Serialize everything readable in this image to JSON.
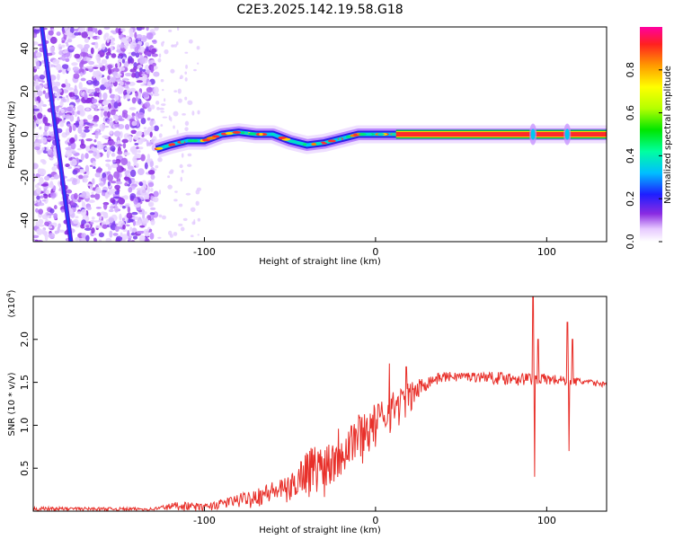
{
  "chart_data": [
    {
      "type": "heatmap",
      "title": "C2E3.2025.142.19.58.G18",
      "xlabel": "Height of straight line (km)",
      "ylabel": "Frequency (Hz)",
      "xlim": [
        -200,
        135
      ],
      "ylim": [
        -50,
        50
      ],
      "xticks": [
        "-100",
        "0",
        "100"
      ],
      "yticks": [
        "40",
        "20",
        "0",
        "-20",
        "-40"
      ],
      "colorbar": {
        "label": "Normalized spectral amplitude",
        "range": [
          0,
          1
        ],
        "ticks": [
          "0.0",
          "0.2",
          "0.4",
          "0.6",
          "0.8"
        ]
      },
      "features": {
        "noise_region_x": [
          -200,
          -128
        ],
        "diagonal_line": {
          "x_start": -195,
          "y_start": 50,
          "x_end": -178,
          "y_end": -50
        },
        "signal_track": [
          {
            "x": -128,
            "y": -7
          },
          {
            "x": -120,
            "y": -5
          },
          {
            "x": -110,
            "y": -3
          },
          {
            "x": -100,
            "y": -3
          },
          {
            "x": -90,
            "y": 0
          },
          {
            "x": -80,
            "y": 1
          },
          {
            "x": -70,
            "y": 0
          },
          {
            "x": -60,
            "y": 0
          },
          {
            "x": -50,
            "y": -3
          },
          {
            "x": -40,
            "y": -5
          },
          {
            "x": -30,
            "y": -4
          },
          {
            "x": -20,
            "y": -2
          },
          {
            "x": -10,
            "y": 0
          },
          {
            "x": 0,
            "y": 0
          },
          {
            "x": 10,
            "y": 0
          },
          {
            "x": 12,
            "y": 0
          },
          {
            "x": 135,
            "y": 0
          }
        ],
        "steady_tone_x": [
          12,
          135
        ]
      }
    },
    {
      "type": "line",
      "xlabel": "Height of straight line (km)",
      "ylabel": "SNR (10 * v/v)",
      "scale_note": "(x10",
      "scale_exp": "4",
      "xlim": [
        -200,
        135
      ],
      "ylim": [
        0,
        2.5
      ],
      "xticks": [
        "-100",
        "0",
        "100"
      ],
      "yticks": [
        "2.0",
        "1.5",
        "1.0",
        "0.5"
      ],
      "color": "#e8302a",
      "envelope": [
        {
          "x": -200,
          "lo": 0.0,
          "hi": 0.05
        },
        {
          "x": -130,
          "lo": 0.0,
          "hi": 0.04
        },
        {
          "x": -115,
          "lo": 0.0,
          "hi": 0.12
        },
        {
          "x": -100,
          "lo": 0.0,
          "hi": 0.08
        },
        {
          "x": -80,
          "lo": 0.03,
          "hi": 0.2
        },
        {
          "x": -60,
          "lo": 0.05,
          "hi": 0.35
        },
        {
          "x": -50,
          "lo": 0.08,
          "hi": 0.4
        },
        {
          "x": -40,
          "lo": 0.15,
          "hi": 0.75
        },
        {
          "x": -30,
          "lo": 0.15,
          "hi": 0.8
        },
        {
          "x": -20,
          "lo": 0.3,
          "hi": 1.05
        },
        {
          "x": -10,
          "lo": 0.5,
          "hi": 1.15
        },
        {
          "x": 0,
          "lo": 0.7,
          "hi": 1.25
        },
        {
          "x": 10,
          "lo": 0.9,
          "hi": 1.4
        },
        {
          "x": 20,
          "lo": 1.1,
          "hi": 1.5
        },
        {
          "x": 30,
          "lo": 1.4,
          "hi": 1.58
        },
        {
          "x": 40,
          "lo": 1.5,
          "hi": 1.62
        },
        {
          "x": 60,
          "lo": 1.5,
          "hi": 1.62
        },
        {
          "x": 80,
          "lo": 1.45,
          "hi": 1.62
        },
        {
          "x": 100,
          "lo": 1.45,
          "hi": 1.6
        },
        {
          "x": 120,
          "lo": 1.45,
          "hi": 1.55
        },
        {
          "x": 135,
          "lo": 1.45,
          "hi": 1.5
        }
      ],
      "spikes": [
        {
          "x": 8,
          "y": 1.72
        },
        {
          "x": 18,
          "y": 1.68
        },
        {
          "x": 92,
          "y": 2.5
        },
        {
          "x": 93,
          "y": 0.4
        },
        {
          "x": 95,
          "y": 2.0
        },
        {
          "x": 112,
          "y": 2.2
        },
        {
          "x": 113,
          "y": 0.7
        },
        {
          "x": 115,
          "y": 2.0
        }
      ]
    }
  ]
}
